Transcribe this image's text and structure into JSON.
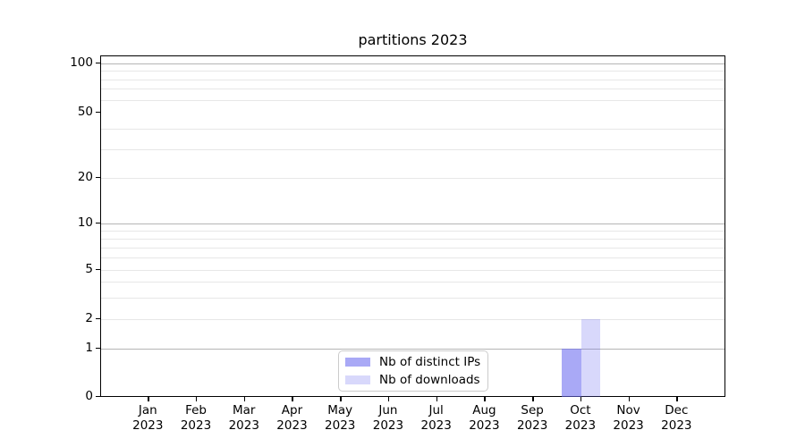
{
  "chart_data": {
    "type": "bar",
    "title": "partitions 2023",
    "categories": [
      "Jan 2023",
      "Feb 2023",
      "Mar 2023",
      "Apr 2023",
      "May 2023",
      "Jun 2023",
      "Jul 2023",
      "Aug 2023",
      "Sep 2023",
      "Oct 2023",
      "Nov 2023",
      "Dec 2023"
    ],
    "series": [
      {
        "name": "Nb of distinct IPs",
        "color": "#6a6af0",
        "alpha": 0.58,
        "values": [
          0,
          0,
          0,
          0,
          0,
          0,
          0,
          0,
          0,
          1,
          0,
          0
        ]
      },
      {
        "name": "Nb of downloads",
        "color": "#6a6af0",
        "alpha": 0.26,
        "values": [
          0,
          0,
          0,
          0,
          0,
          0,
          0,
          0,
          0,
          2,
          0,
          0
        ]
      }
    ],
    "yscale": "symlog",
    "ylim": [
      0,
      100
    ],
    "yticks_labeled": [
      0,
      1,
      2,
      5,
      10,
      20,
      50,
      100
    ],
    "grid": "both",
    "grid_major_color": "#b5b5b5",
    "grid_minor_color": "#e7e7e7",
    "legend_position": "lower center",
    "xlabel": "",
    "ylabel": ""
  }
}
